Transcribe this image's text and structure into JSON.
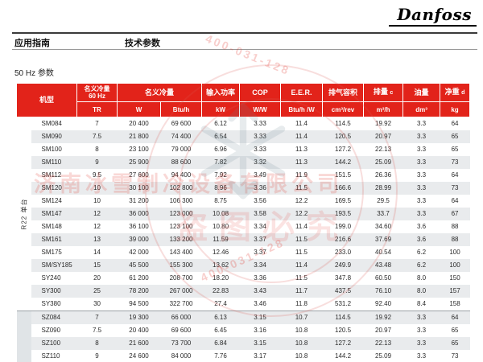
{
  "brand": {
    "logo_text": "Danfoss"
  },
  "nav": {
    "app_guide": "应用指南",
    "tech_params": "技术参数"
  },
  "section": {
    "title": "50 Hz 参数"
  },
  "colors": {
    "header_red": "#e2231a",
    "row_alt": "#e9ebed",
    "group_sz_bg": "#e0e4e7"
  },
  "watermark": {
    "company": "济南冰雪制冷设备有限公司",
    "warning": "盗图必究",
    "phone": "400-031-128"
  },
  "table": {
    "header": {
      "model": "机型",
      "nominal_60hz_line1": "名义冷量",
      "nominal_60hz_line2": "60 Hz",
      "nominal": "名义冷量",
      "power": "输入功率",
      "cop": "COP",
      "eer": "E.E.R.",
      "swept_volume": "排气容积",
      "displacement": "排量",
      "displacement_note": "c",
      "oil": "油量",
      "net_weight": "净重",
      "net_weight_note": "d",
      "units": [
        "TR",
        "W",
        "Btu/h",
        "kW",
        "W/W",
        "Btu/h /W",
        "cm³/rev",
        "m³/h",
        "dm³",
        "kg"
      ]
    },
    "groups": [
      {
        "label": "R22 单台",
        "row_count": 15
      },
      {
        "label": "",
        "row_count": 4
      }
    ],
    "rows": [
      [
        "SM084",
        "7",
        "20 400",
        "69 600",
        "6.12",
        "3.33",
        "11.4",
        "114.5",
        "19.92",
        "3.3",
        "64"
      ],
      [
        "SM090",
        "7.5",
        "21 800",
        "74 400",
        "6.54",
        "3.33",
        "11.4",
        "120.5",
        "20.97",
        "3.3",
        "65"
      ],
      [
        "SM100",
        "8",
        "23 100",
        "79 000",
        "6.96",
        "3.33",
        "11.3",
        "127.2",
        "22.13",
        "3.3",
        "65"
      ],
      [
        "SM110",
        "9",
        "25 900",
        "88 600",
        "7.82",
        "3.32",
        "11.3",
        "144.2",
        "25.09",
        "3.3",
        "73"
      ],
      [
        "SM112",
        "9.5",
        "27 600",
        "94 400",
        "7.92",
        "3.49",
        "11.9",
        "151.5",
        "26.36",
        "3.3",
        "64"
      ],
      [
        "SM120",
        "10",
        "30 100",
        "102 800",
        "8.96",
        "3.36",
        "11.5",
        "166.6",
        "28.99",
        "3.3",
        "73"
      ],
      [
        "SM124",
        "10",
        "31 200",
        "106 300",
        "8.75",
        "3.56",
        "12.2",
        "169.5",
        "29.5",
        "3.3",
        "64"
      ],
      [
        "SM147",
        "12",
        "36 000",
        "123 000",
        "10.08",
        "3.58",
        "12.2",
        "193.5",
        "33.7",
        "3.3",
        "67"
      ],
      [
        "SM148",
        "12",
        "36 100",
        "123 100",
        "10.80",
        "3.34",
        "11.4",
        "199.0",
        "34.60",
        "3.6",
        "88"
      ],
      [
        "SM161",
        "13",
        "39 000",
        "133 200",
        "11.59",
        "3.37",
        "11.5",
        "216.6",
        "37.69",
        "3.6",
        "88"
      ],
      [
        "SM175",
        "14",
        "42 000",
        "143 400",
        "12.46",
        "3.37",
        "11.5",
        "233.0",
        "40.54",
        "6.2",
        "100"
      ],
      [
        "SM/SY185",
        "15",
        "45 500",
        "155 300",
        "13.62",
        "3.34",
        "11.4",
        "249.9",
        "43.48",
        "6.2",
        "100"
      ],
      [
        "SY240",
        "20",
        "61 200",
        "208 700",
        "18.20",
        "3.36",
        "11.5",
        "347.8",
        "60.50",
        "8.0",
        "150"
      ],
      [
        "SY300",
        "25",
        "78 200",
        "267 000",
        "22.83",
        "3.43",
        "11.7",
        "437.5",
        "76.10",
        "8.0",
        "157"
      ],
      [
        "SY380",
        "30",
        "94 500",
        "322 700",
        "27.4",
        "3.46",
        "11.8",
        "531.2",
        "92.40",
        "8.4",
        "158"
      ],
      [
        "SZ084",
        "7",
        "19 300",
        "66 000",
        "6.13",
        "3.15",
        "10.7",
        "114.5",
        "19.92",
        "3.3",
        "64"
      ],
      [
        "SZ090",
        "7.5",
        "20 400",
        "69 600",
        "6.45",
        "3.16",
        "10.8",
        "120.5",
        "20.97",
        "3.3",
        "65"
      ],
      [
        "SZ100",
        "8",
        "21 600",
        "73 700",
        "6.84",
        "3.15",
        "10.8",
        "127.2",
        "22.13",
        "3.3",
        "65"
      ],
      [
        "SZ110",
        "9",
        "24 600",
        "84 000",
        "7.76",
        "3.17",
        "10.8",
        "144.2",
        "25.09",
        "3.3",
        "73"
      ]
    ]
  }
}
